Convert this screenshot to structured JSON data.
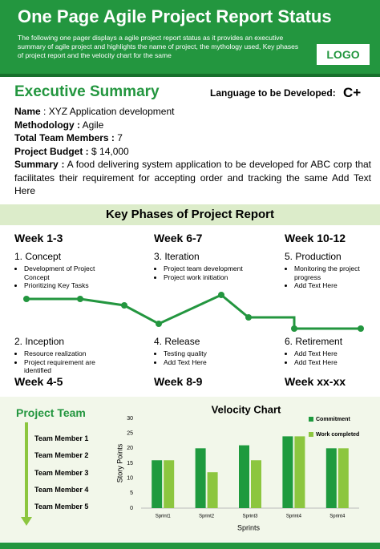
{
  "header": {
    "title": "One Page Agile Project Report Status",
    "description": "The following one pager displays a agile project report status as it provides an executive summary of agile project and highlights the name of project, the mythology used, Key phases of project report and the velocity chart for the same",
    "logo": "LOGO"
  },
  "summary": {
    "title": "Executive Summary",
    "language_label": "Language to be Developed:",
    "language": "C+",
    "fields": [
      {
        "label": "Name",
        "value": ": XYZ Application development"
      },
      {
        "label": "Methodology :",
        "value": "Agile"
      },
      {
        "label": "Total Team Members :",
        "value": "7"
      },
      {
        "label": "Project Budget :",
        "value": "$ 14,000"
      },
      {
        "label": "Summary :",
        "value": "A food delivering system application to be developed for ABC corp that facilitates their requirement for accepting order and tracking the same Add Text Here"
      }
    ]
  },
  "phases": {
    "title": "Key Phases of Project Report",
    "top": [
      {
        "week": "Week 1-3",
        "name": "1. Concept",
        "bullets": [
          "Development of Project Concept",
          "Prioritizing Key Tasks"
        ]
      },
      {
        "week": "Week 6-7",
        "name": "3. Iteration",
        "bullets": [
          "Project team development",
          "Project work initiation"
        ]
      },
      {
        "week": "Week 10-12",
        "name": "5. Production",
        "bullets": [
          "Monitoring the project progress",
          "Add Text Here"
        ]
      }
    ],
    "bottom": [
      {
        "week": "Week 4-5",
        "name": "2. Inception",
        "bullets": [
          "Resource realization",
          "Project requirement are identified"
        ]
      },
      {
        "week": "Week 8-9",
        "name": "4. Release",
        "bullets": [
          "Testing quality",
          "Add Text Here"
        ]
      },
      {
        "week": "Week xx-xx",
        "name": "6. Retirement",
        "bullets": [
          "Add Text Here",
          "Add Text Here"
        ]
      }
    ]
  },
  "team": {
    "title": "Project Team",
    "members": [
      "Team Member 1",
      "Team Member 2",
      "Team Member 3",
      "Team Member 4",
      "Team Member 5"
    ]
  },
  "chart_data": {
    "type": "bar",
    "title": "Velocity Chart",
    "x_label": "Sprints",
    "y_label": "Story Points",
    "categories": [
      "Sprint1",
      "Sprint2",
      "Sprint3",
      "Sprint4",
      "Sprint4"
    ],
    "series": [
      {
        "name": "Commitment",
        "color": "#1e9a3e",
        "values": [
          16,
          20,
          21,
          24,
          20
        ]
      },
      {
        "name": "Work completed",
        "color": "#8cc63f",
        "values": [
          16,
          12,
          16,
          24,
          20
        ]
      }
    ],
    "ylim": [
      0,
      30
    ],
    "yticks": [
      0,
      5,
      10,
      15,
      20,
      25,
      30
    ]
  }
}
